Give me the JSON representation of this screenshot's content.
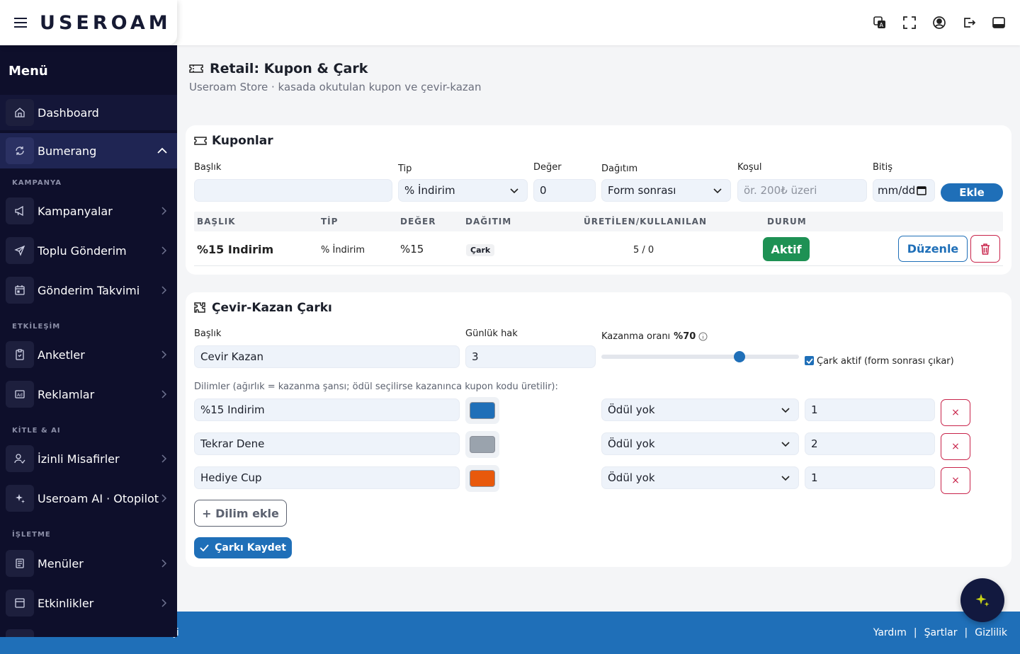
{
  "topbar": {
    "logo_text": "USEROAM",
    "icons": [
      "translate-icon",
      "fullscreen-icon",
      "user-circle-icon",
      "logout-icon",
      "layout-icon"
    ]
  },
  "sidebar": {
    "title": "Menü",
    "dashboard": "Dashboard",
    "bumerang": "Bumerang",
    "section_kampanya": "KAMPANYA",
    "kampanyalar": "Kampanyalar",
    "toplu_gonderim": "Toplu Gönderim",
    "gonderim_takvimi": "Gönderim Takvimi",
    "section_etkilesim": "ETKİLEŞİM",
    "anketler": "Anketler",
    "reklamlar": "Reklamlar",
    "section_kitle": "KİTLE & AI",
    "izinli_misafirler": "İzinli Misafirler",
    "useroam_ai": "Useroam AI · Otopilot",
    "section_isletme": "İŞLETME",
    "menuler": "Menüler",
    "etkinlikler": "Etkinlikler"
  },
  "page": {
    "title": "Retail: Kupon & Çark",
    "subtitle": "Useroam Store · kasada okutulan kupon ve çevir-kazan"
  },
  "coupons": {
    "title": "Kuponlar",
    "form": {
      "baslik_label": "Başlık",
      "baslik_value": "",
      "tip_label": "Tip",
      "tip_value": "% İndirim",
      "deger_label": "Değer",
      "deger_value": "0",
      "dagitim_label": "Dağıtım",
      "dagitim_value": "Form sonrası",
      "kosul_label": "Koşul",
      "kosul_placeholder": "ör. 200₺ üzeri",
      "bitis_label": "Bitiş",
      "bitis_value": "mm/dd",
      "ekle_button": "Ekle"
    },
    "headers": {
      "baslik": "BAŞLIK",
      "tip": "TİP",
      "deger": "DEĞER",
      "dagitim": "DAĞITIM",
      "uretilen": "ÜRETİLEN/KULLANILAN",
      "durum": "DURUM"
    },
    "row": {
      "baslik": "%15 Indirim",
      "tip": "% İndirim",
      "deger": "%15",
      "dagitim": "Çark",
      "uretilen": "5 / 0",
      "durum": "Aktif",
      "edit_button": "Düzenle"
    }
  },
  "wheel": {
    "title": "Çevir-Kazan Çarkı",
    "baslik_label": "Başlık",
    "baslik_value": "Cevir Kazan",
    "gunluk_label": "Günlük hak",
    "gunluk_value": "3",
    "oran_label": "Kazanma oranı",
    "oran_value": "%70",
    "oran_fraction": 0.7,
    "aktif_label": "Çark aktif (form sonrası çıkar)",
    "aktif_checked": true,
    "dilimler_label": "Dilimler (ağırlık = kazanma şansı; ödül seçilirse kazanınca kupon kodu üretilir):",
    "slices": [
      {
        "name": "%15 Indirim",
        "color": "#1f6fb8",
        "prize": "Ödül yok",
        "weight": "1"
      },
      {
        "name": "Tekrar Dene",
        "color": "#9aa3ad",
        "prize": "Ödül yok",
        "weight": "2"
      },
      {
        "name": "Hediye Cup",
        "color": "#e8590c",
        "prize": "Ödül yok",
        "weight": "1"
      }
    ],
    "remove_glyph": "×",
    "add_button": "+ Dilim ekle",
    "save_button": "Çarkı Kaydet"
  },
  "footer": {
    "copyright": "ji",
    "links": [
      "Yardım",
      "|",
      "Şartlar",
      "|",
      "Gizlilik"
    ]
  },
  "colors": {
    "primary": "#1f6fb8",
    "sidebar_bg": "#0e0f2b",
    "success": "#1e9154",
    "danger": "#c8234a",
    "logo_accent": "#c9d416"
  }
}
